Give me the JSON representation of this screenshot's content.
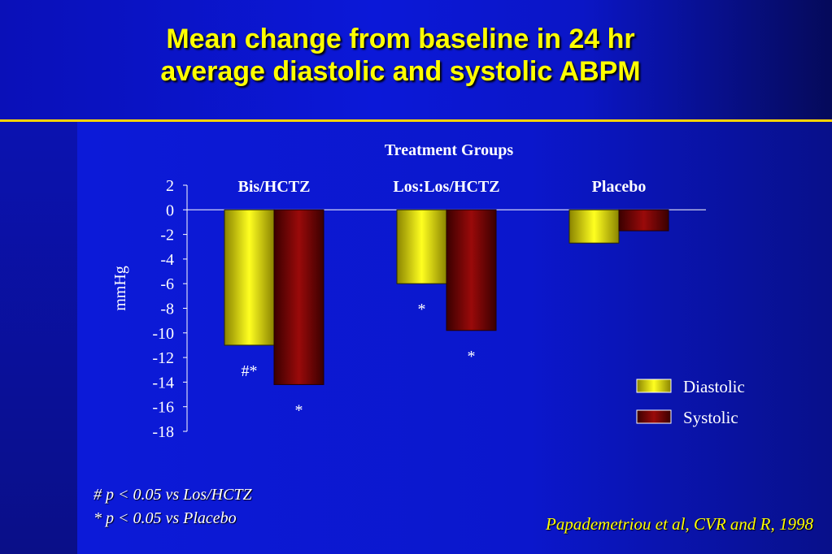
{
  "slide": {
    "title_line1": "Mean change from baseline in 24 hr",
    "title_line2": "average diastolic and systolic ABPM",
    "footnote_1": "# p < 0.05 vs Los/HCTZ",
    "footnote_2": "* p < 0.05 vs Placebo",
    "citation": "Papademetriou et al, CVR and R, 1998"
  },
  "colors": {
    "title": "#ffff00",
    "rule": "#ffd400",
    "diastolic": "#e8e000",
    "systolic": "#8a0000"
  },
  "chart_data": {
    "type": "bar",
    "title": "Treatment Groups",
    "ylabel": "mmHg",
    "xlabel": "",
    "categories": [
      "Bis/HCTZ",
      "Los:Los/HCTZ",
      "Placebo"
    ],
    "series": [
      {
        "name": "Diastolic",
        "values": [
          -11.0,
          -6.0,
          -2.7
        ],
        "annotations": [
          "#*",
          "*",
          ""
        ]
      },
      {
        "name": "Systolic",
        "values": [
          -14.2,
          -9.8,
          -1.7
        ],
        "annotations": [
          "*",
          "*",
          ""
        ]
      }
    ],
    "ylim": [
      -18,
      2
    ],
    "yticks": [
      2,
      0,
      -2,
      -4,
      -6,
      -8,
      -10,
      -12,
      -14,
      -16,
      -18
    ],
    "grid": false,
    "legend_position": "right"
  }
}
